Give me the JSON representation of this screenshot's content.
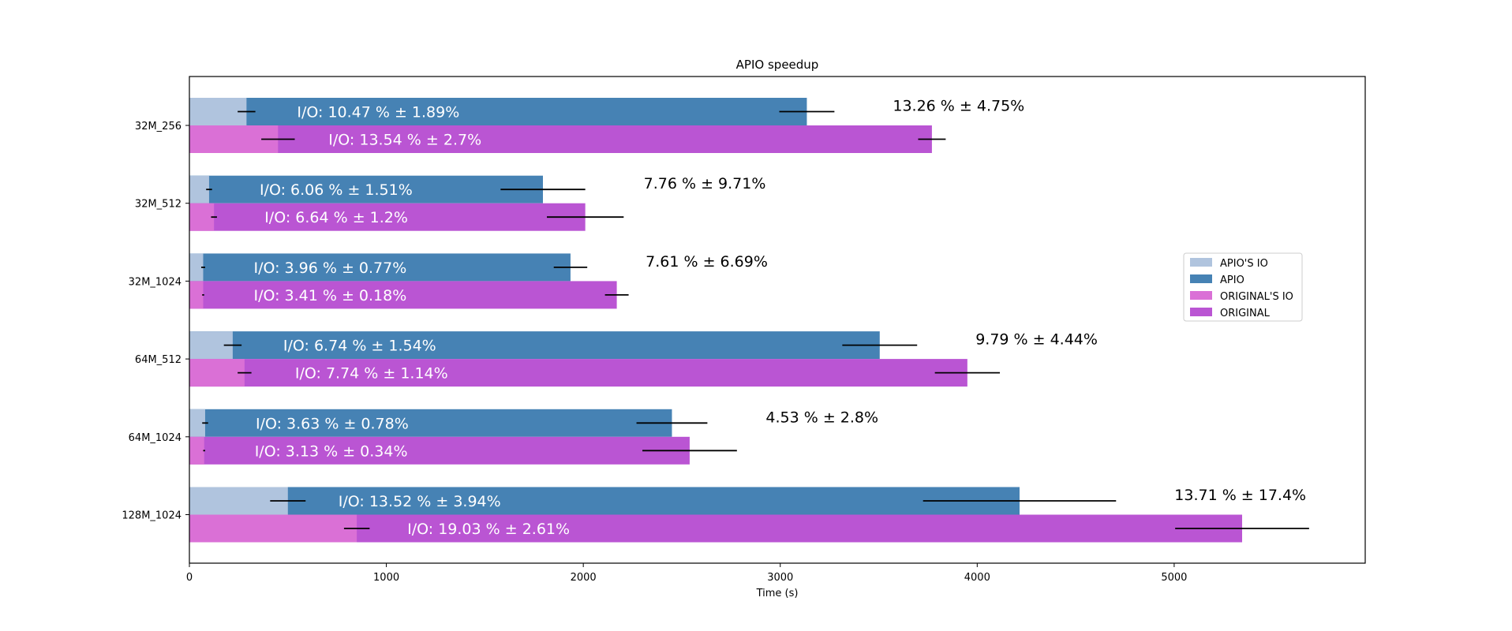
{
  "chart_data": {
    "type": "bar",
    "orientation": "horizontal",
    "title": "APIO speedup",
    "xlabel": "Time (s)",
    "ylabel": "",
    "xlim": [
      0,
      5970
    ],
    "xticks": [
      0,
      1000,
      2000,
      3000,
      4000,
      5000
    ],
    "grid": false,
    "legend_position": "right",
    "categories": [
      "32M_256",
      "32M_512",
      "32M_1024",
      "64M_512",
      "64M_1024",
      "128M_1024"
    ],
    "series": [
      {
        "name": "APIO'S IO",
        "color": "#b0c4de",
        "values": [
          290,
          100,
          70,
          220,
          80,
          500
        ],
        "errors": [
          45,
          15,
          10,
          45,
          15,
          90
        ]
      },
      {
        "name": "APIO",
        "color": "#4682b4",
        "values": [
          3135,
          1795,
          1935,
          3505,
          2450,
          4215
        ],
        "errors": [
          140,
          215,
          85,
          190,
          180,
          490
        ]
      },
      {
        "name": "ORIGINAL'S IO",
        "color": "#da70d6",
        "values": [
          450,
          125,
          70,
          280,
          75,
          850
        ],
        "errors": [
          85,
          15,
          5,
          35,
          5,
          65
        ]
      },
      {
        "name": "ORIGINAL",
        "color": "#ba55d3",
        "values": [
          3770,
          2010,
          2170,
          3950,
          2540,
          5345
        ],
        "errors": [
          70,
          195,
          60,
          165,
          240,
          340
        ]
      }
    ],
    "annotations": {
      "apio_io_labels": [
        "I/O:  10.47 % ± 1.89%",
        "I/O:  6.06 % ± 1.51%",
        "I/O:  3.96 % ± 0.77%",
        "I/O:  6.74 % ± 1.54%",
        "I/O:  3.63 % ± 0.78%",
        "I/O:  13.52 % ± 3.94%"
      ],
      "original_io_labels": [
        "I/O:  13.54 % ± 2.7%",
        "I/O:  6.64 % ± 1.2%",
        "I/O:  3.41 % ± 0.18%",
        "I/O:  7.74 % ± 1.14%",
        "I/O:  3.13 % ± 0.34%",
        "I/O:  19.03 % ± 2.61%"
      ],
      "speedup_labels": [
        "13.26 % ± 4.75%",
        "7.76 % ± 9.71%",
        "7.61 % ± 6.69%",
        "9.79 % ± 4.44%",
        "4.53 % ± 2.8%",
        "13.71 % ± 17.4%"
      ]
    }
  }
}
